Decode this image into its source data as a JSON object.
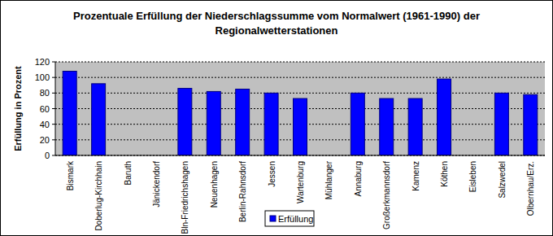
{
  "chart_data": {
    "type": "bar",
    "title": "Prozentuale Erfüllung der Niederschlagssumme vom Normalwert (1961-1990) der Regionalwetterstationen",
    "y_label": "Erfüllung in Prozent",
    "categories": [
      "Bismark",
      "Doberlug-Kirchhain",
      "Baruth",
      "Jänickendorf",
      "Bln-Friedrichshagen",
      "Neuenhagen",
      "Berlin-Rahnsdorf",
      "Jessen",
      "Wartenburg",
      "Mühlanger",
      "Annaburg",
      "Großerkmannsdorf",
      "Kamenz",
      "Köthen",
      "Eisleben",
      "Salzwedel",
      "Olbernhau/Erz."
    ],
    "series": [
      {
        "name": "Erfüllung",
        "color": "#0000ff",
        "values": [
          108,
          92,
          null,
          null,
          86,
          82,
          85,
          80,
          73,
          null,
          80,
          73,
          73,
          98,
          null,
          80,
          78
        ]
      }
    ],
    "ylim": [
      0,
      120
    ],
    "yticks": [
      0,
      20,
      40,
      60,
      80,
      100,
      120
    ],
    "grid": true,
    "legend": "bottom"
  }
}
